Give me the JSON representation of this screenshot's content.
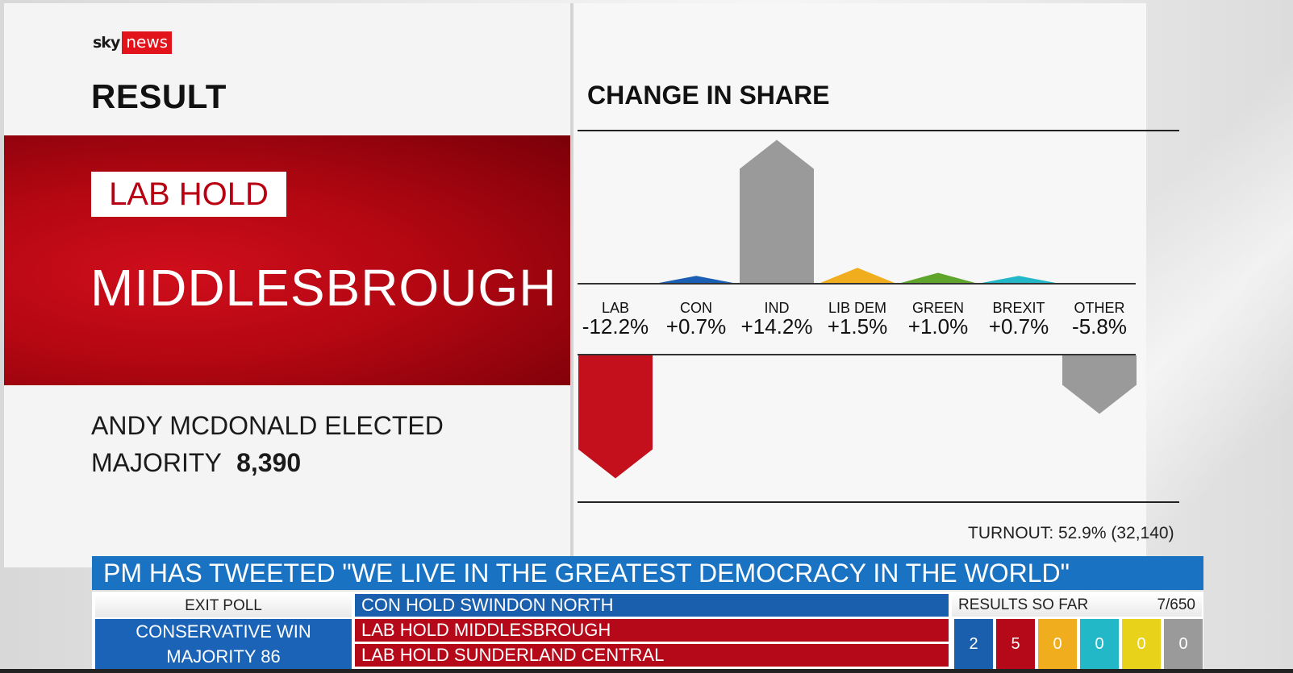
{
  "logo": {
    "sky": "sky",
    "news": "news"
  },
  "result": {
    "title": "RESULT",
    "badge": "LAB HOLD",
    "constituency": "MIDDLESBROUGH",
    "elected": "ANDY MCDONALD ELECTED",
    "majority_label": "MAJORITY",
    "majority_value": "8,390"
  },
  "chart_data": {
    "type": "bar",
    "title": "CHANGE IN SHARE",
    "categories": [
      "LAB",
      "CON",
      "IND",
      "LIB DEM",
      "GREEN",
      "BREXIT",
      "OTHER"
    ],
    "labels": [
      "-12.2%",
      "+0.7%",
      "+14.2%",
      "+1.5%",
      "+1.0%",
      "+0.7%",
      "-5.8%"
    ],
    "values": [
      -12.2,
      0.7,
      14.2,
      1.5,
      1.0,
      0.7,
      -5.8
    ],
    "colors": [
      "#c4101c",
      "#1a5fb4",
      "#9a9a9a",
      "#f0ad1d",
      "#5fa52b",
      "#23b8c8",
      "#9a9a9a"
    ]
  },
  "turnout": "TURNOUT: 52.9% (32,140)",
  "ticker": {
    "headline": "PM HAS TWEETED \"WE LIVE IN THE GREATEST DEMOCRACY IN THE WORLD\"",
    "exit_poll_label": "EXIT POLL",
    "exit_poll_line1": "CONSERVATIVE WIN",
    "exit_poll_line2": "MAJORITY 86",
    "results": [
      "CON HOLD SWINDON NORTH",
      "LAB HOLD MIDDLESBROUGH",
      "LAB HOLD SUNDERLAND CENTRAL"
    ],
    "results_so_far_label": "RESULTS SO FAR",
    "results_so_far_count": "7/650",
    "tallies": [
      {
        "value": "2",
        "color": "#1a5fae"
      },
      {
        "value": "5",
        "color": "#b5091a"
      },
      {
        "value": "0",
        "color": "#f0ad1d"
      },
      {
        "value": "0",
        "color": "#23b8c8"
      },
      {
        "value": "0",
        "color": "#e8d21a"
      },
      {
        "value": "0",
        "color": "#9a9a9a"
      }
    ]
  }
}
